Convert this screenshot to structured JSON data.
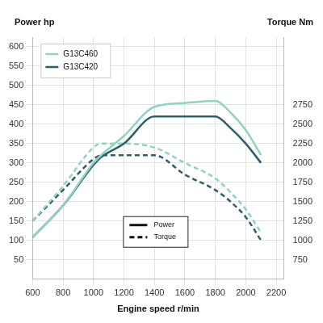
{
  "chart_data": {
    "type": "line",
    "ylabel": "Power hp",
    "y2label": "Torque Nm",
    "xlabel": "Engine speed r/min",
    "x": [
      600,
      800,
      1000,
      1050,
      1200,
      1400,
      1600,
      1800,
      1900,
      2000,
      2100
    ],
    "series": [
      {
        "name": "G13C460",
        "color": "#8fd3c1",
        "line_style": "solid",
        "values": [
          108,
          190,
          300,
          320,
          370,
          445,
          455,
          460,
          430,
          385,
          320
        ]
      },
      {
        "name": "G13C420",
        "color": "#2f5e6a",
        "line_style": "solid",
        "values": [
          108,
          190,
          295,
          315,
          350,
          420,
          420,
          420,
          390,
          350,
          300
        ]
      },
      {
        "name": "G13C460",
        "color": "#8fd3c1",
        "line_style": "dashed",
        "axis": "y2",
        "values": [
          1250,
          1700,
          2200,
          2250,
          2250,
          2200,
          2000,
          1800,
          1620,
          1400,
          1100
        ]
      },
      {
        "name": "G13C420",
        "color": "#2f5e6a",
        "line_style": "dashed",
        "axis": "y2",
        "values": [
          1250,
          1650,
          2050,
          2100,
          2100,
          2100,
          1850,
          1650,
          1500,
          1300,
          1000
        ]
      }
    ],
    "xlim": [
      600,
      2250
    ],
    "xticks": [
      600,
      800,
      1000,
      1200,
      1400,
      1600,
      1800,
      2000,
      2200
    ],
    "ylim": [
      0,
      625
    ],
    "yticks": [
      50,
      100,
      150,
      200,
      250,
      300,
      350,
      400,
      450,
      500,
      550,
      600
    ],
    "y2lim": [
      500,
      3625
    ],
    "y2ticks": [
      750,
      1000,
      1250,
      1500,
      1750,
      2000,
      2250,
      2500,
      2750
    ],
    "grid": true,
    "legend": "upper left",
    "annotations": [
      {
        "text": "Power",
        "line_style": "solid"
      },
      {
        "text": "Torque",
        "line_style": "dashed"
      }
    ]
  }
}
